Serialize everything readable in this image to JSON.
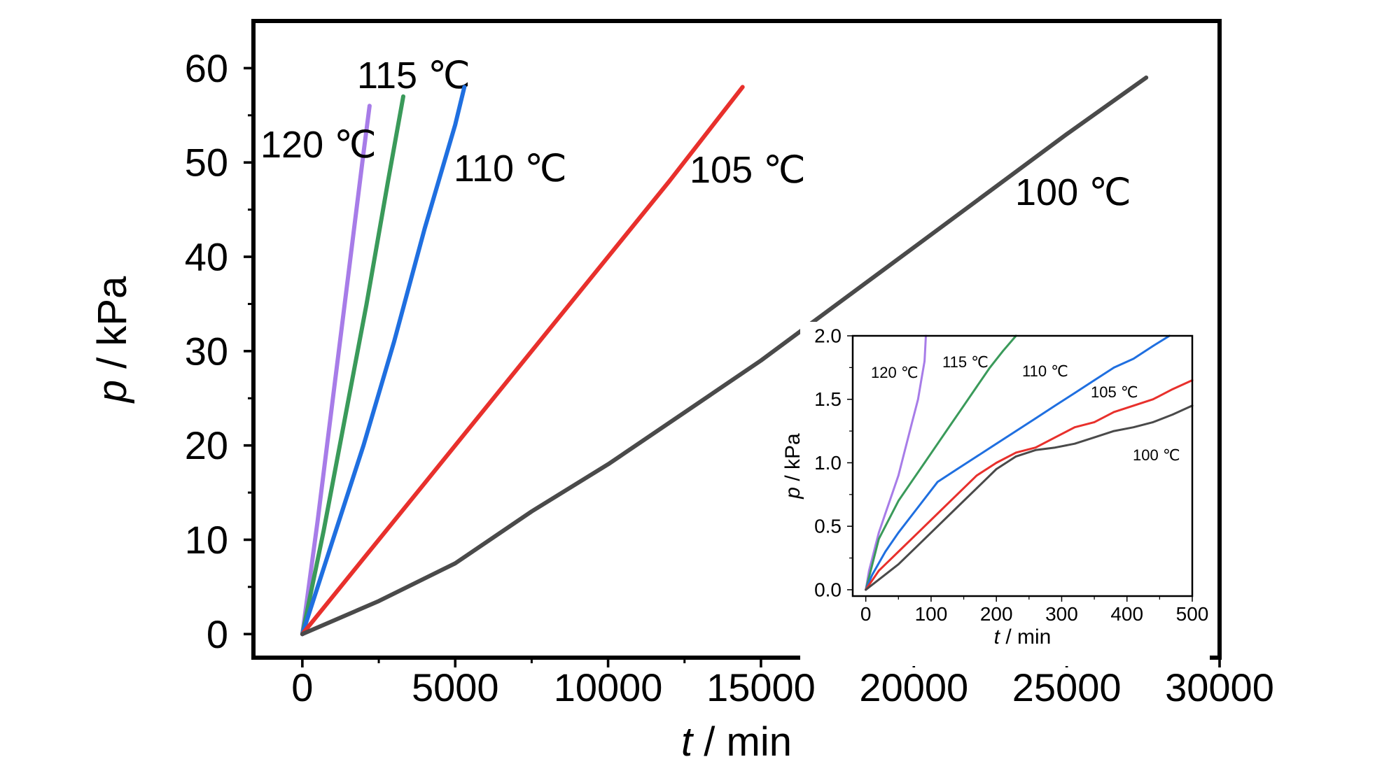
{
  "chart_data": [
    {
      "type": "line",
      "title": "",
      "xlabel": {
        "var": "t",
        "unit": " / min"
      },
      "ylabel": {
        "var": "p",
        "unit": " / kPa"
      },
      "xlim": [
        -1600,
        30000
      ],
      "ylim": [
        -2.5,
        65
      ],
      "xticks": [
        0,
        5000,
        10000,
        15000,
        20000,
        25000,
        30000
      ],
      "yticks": [
        0,
        10,
        20,
        30,
        40,
        50,
        60
      ],
      "grid": false,
      "legend": "inline labels",
      "series": [
        {
          "name": "120 ℃",
          "color": "#a77ce8",
          "x": [
            0,
            500,
            1000,
            1500,
            2000,
            2200
          ],
          "y": [
            0,
            12,
            25,
            38,
            51,
            56
          ]
        },
        {
          "name": "115 ℃",
          "color": "#3a9a5a",
          "x": [
            0,
            700,
            1400,
            2100,
            2800,
            3300
          ],
          "y": [
            0,
            11,
            23,
            35,
            48,
            57
          ]
        },
        {
          "name": "110 ℃",
          "color": "#1f6fe0",
          "x": [
            0,
            1000,
            2000,
            3000,
            4000,
            5000,
            5300
          ],
          "y": [
            0,
            10,
            20,
            31,
            43,
            54,
            58
          ]
        },
        {
          "name": "105 ℃",
          "color": "#e8302c",
          "x": [
            0,
            2000,
            4000,
            6000,
            8000,
            10000,
            12000,
            14400
          ],
          "y": [
            0,
            8,
            16,
            24,
            32,
            40,
            48,
            58
          ]
        },
        {
          "name": "100 ℃",
          "color": "#4a4a4a",
          "x": [
            0,
            2500,
            5000,
            7500,
            10000,
            12500,
            15000,
            17500,
            20000,
            22500,
            25000,
            27600
          ],
          "y": [
            0,
            3.5,
            7.5,
            13,
            18,
            23.5,
            29,
            35,
            41,
            47,
            53,
            59
          ]
        }
      ]
    },
    {
      "type": "line",
      "title": "",
      "xlabel": {
        "var": "t",
        "unit": " / min"
      },
      "ylabel": {
        "var": "p",
        "unit": " / kPa"
      },
      "xlim": [
        -20,
        500
      ],
      "ylim": [
        -0.05,
        2.0
      ],
      "xticks": [
        0,
        100,
        200,
        300,
        400,
        500
      ],
      "yticks": [
        0.0,
        0.5,
        1.0,
        1.5,
        2.0
      ],
      "xtick_labels": [
        "0",
        "100",
        "200",
        "300",
        "400",
        "500"
      ],
      "ytick_labels": [
        "0.0",
        "0.5",
        "1.0",
        "1.5",
        "2.0"
      ],
      "grid": false,
      "legend": "inline labels",
      "series": [
        {
          "name": "120 ℃",
          "color": "#a77ce8",
          "x": [
            0,
            5,
            10,
            15,
            20,
            30,
            40,
            50,
            60,
            70,
            80,
            85,
            90,
            92
          ],
          "y": [
            0,
            0.15,
            0.25,
            0.35,
            0.45,
            0.6,
            0.75,
            0.9,
            1.1,
            1.3,
            1.5,
            1.65,
            1.8,
            2.0
          ]
        },
        {
          "name": "115 ℃",
          "color": "#3a9a5a",
          "x": [
            0,
            10,
            20,
            30,
            50,
            70,
            90,
            110,
            130,
            150,
            170,
            190,
            210,
            230
          ],
          "y": [
            0,
            0.2,
            0.4,
            0.5,
            0.7,
            0.85,
            1.0,
            1.15,
            1.3,
            1.45,
            1.6,
            1.75,
            1.88,
            2.0
          ]
        },
        {
          "name": "110 ℃",
          "color": "#1f6fe0",
          "x": [
            0,
            10,
            30,
            50,
            80,
            110,
            140,
            170,
            200,
            230,
            260,
            290,
            320,
            350,
            380,
            410,
            440,
            465
          ],
          "y": [
            0,
            0.12,
            0.3,
            0.45,
            0.65,
            0.85,
            0.95,
            1.05,
            1.15,
            1.25,
            1.35,
            1.45,
            1.55,
            1.65,
            1.75,
            1.82,
            1.92,
            2.0
          ]
        },
        {
          "name": "105 ℃",
          "color": "#e8302c",
          "x": [
            0,
            20,
            50,
            80,
            110,
            140,
            170,
            200,
            230,
            260,
            290,
            320,
            350,
            380,
            410,
            440,
            470,
            500
          ],
          "y": [
            0,
            0.15,
            0.3,
            0.45,
            0.6,
            0.75,
            0.9,
            1.0,
            1.08,
            1.12,
            1.2,
            1.28,
            1.32,
            1.4,
            1.45,
            1.5,
            1.58,
            1.65
          ]
        },
        {
          "name": "100 ℃",
          "color": "#4a4a4a",
          "x": [
            0,
            20,
            50,
            80,
            110,
            140,
            170,
            200,
            230,
            260,
            290,
            320,
            350,
            380,
            410,
            440,
            470,
            500
          ],
          "y": [
            0,
            0.08,
            0.2,
            0.35,
            0.5,
            0.65,
            0.8,
            0.95,
            1.05,
            1.1,
            1.12,
            1.15,
            1.2,
            1.25,
            1.28,
            1.32,
            1.38,
            1.45
          ]
        }
      ]
    }
  ]
}
